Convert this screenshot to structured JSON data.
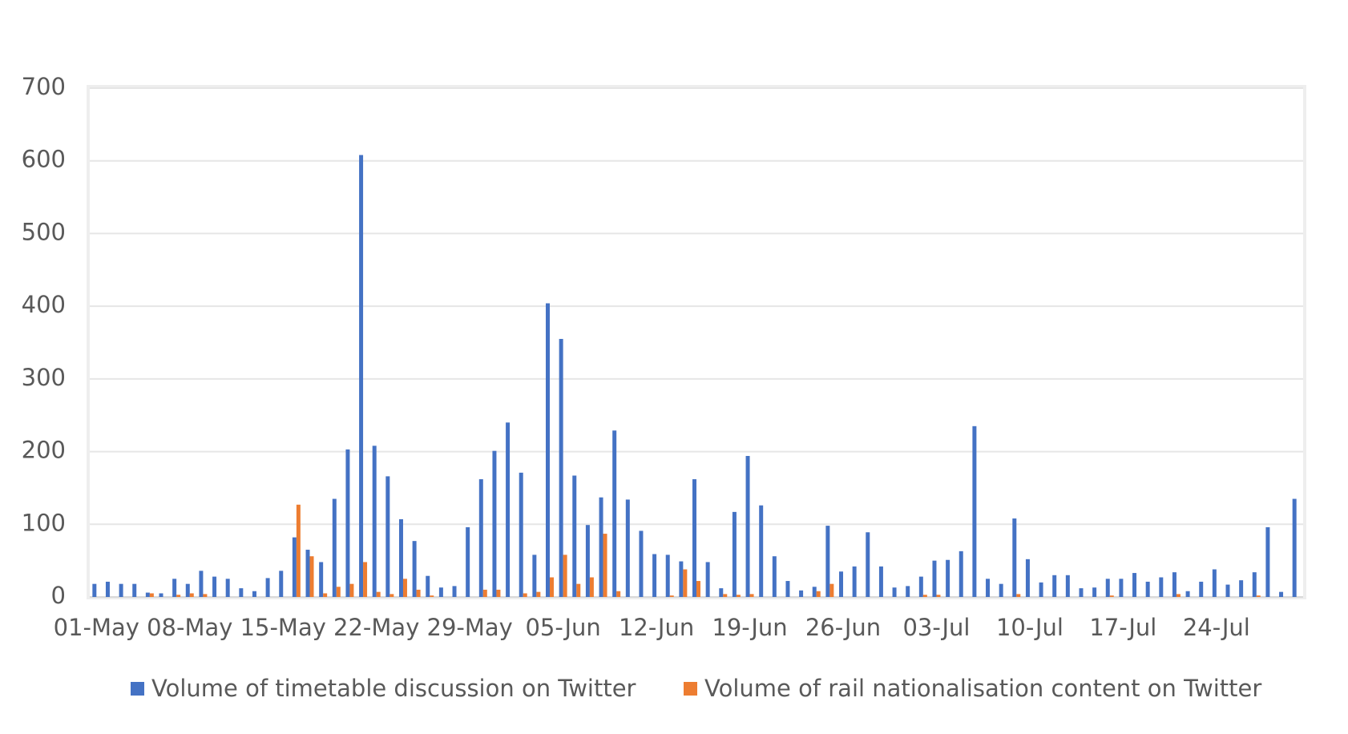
{
  "chart_data": {
    "type": "bar",
    "categories": [
      "01-May",
      null,
      null,
      null,
      null,
      null,
      null,
      "08-May",
      null,
      null,
      null,
      null,
      null,
      null,
      "15-May",
      null,
      null,
      null,
      null,
      null,
      null,
      "22-May",
      null,
      null,
      null,
      null,
      null,
      null,
      "29-May",
      null,
      null,
      null,
      null,
      null,
      null,
      "05-Jun",
      null,
      null,
      null,
      null,
      null,
      null,
      "12-Jun",
      null,
      null,
      null,
      null,
      null,
      null,
      "19-Jun",
      null,
      null,
      null,
      null,
      null,
      null,
      "26-Jun",
      null,
      null,
      null,
      null,
      null,
      null,
      "03-Jul",
      null,
      null,
      null,
      null,
      null,
      null,
      "10-Jul",
      null,
      null,
      null,
      null,
      null,
      null,
      "17-Jul",
      null,
      null,
      null,
      null,
      null,
      null,
      "24-Jul",
      null,
      null,
      null,
      null,
      null,
      null
    ],
    "series": [
      {
        "name": "Volume of timetable discussion on Twitter",
        "color": "#4472c4",
        "values": [
          18,
          21,
          18,
          18,
          6,
          5,
          25,
          18,
          36,
          28,
          25,
          12,
          8,
          26,
          36,
          82,
          65,
          48,
          135,
          203,
          608,
          208,
          166,
          107,
          77,
          29,
          13,
          15,
          96,
          162,
          201,
          240,
          171,
          58,
          404,
          355,
          167,
          99,
          137,
          229,
          134,
          91,
          59,
          58,
          49,
          162,
          48,
          12,
          117,
          194,
          126,
          56,
          22,
          9,
          14,
          98,
          35,
          42,
          89,
          42,
          13,
          15,
          28,
          50,
          51,
          63,
          235,
          25,
          18,
          108,
          52,
          20,
          30,
          30,
          12,
          13,
          25,
          25,
          33,
          21,
          27,
          34,
          8,
          21,
          38,
          17,
          23,
          34,
          96,
          7,
          135
        ]
      },
      {
        "name": "Volume of rail nationalisation content on Twitter",
        "color": "#ed7d31",
        "values": [
          0,
          0,
          0,
          0,
          5,
          0,
          3,
          5,
          4,
          0,
          0,
          0,
          0,
          0,
          0,
          127,
          56,
          5,
          14,
          18,
          48,
          7,
          4,
          25,
          10,
          2,
          0,
          0,
          0,
          10,
          10,
          0,
          5,
          7,
          27,
          58,
          18,
          27,
          87,
          8,
          0,
          0,
          0,
          2,
          38,
          22,
          0,
          4,
          3,
          4,
          0,
          0,
          0,
          0,
          8,
          18,
          0,
          0,
          0,
          0,
          0,
          0,
          3,
          3,
          0,
          0,
          0,
          0,
          0,
          4,
          0,
          0,
          0,
          0,
          0,
          0,
          2,
          0,
          0,
          0,
          0,
          4,
          0,
          0,
          0,
          0,
          0,
          2,
          0,
          0,
          0
        ]
      }
    ],
    "ylim": [
      0,
      700
    ],
    "yticks": [
      0,
      100,
      200,
      300,
      400,
      500,
      600,
      700
    ],
    "grid": true,
    "legend": "bottom"
  }
}
